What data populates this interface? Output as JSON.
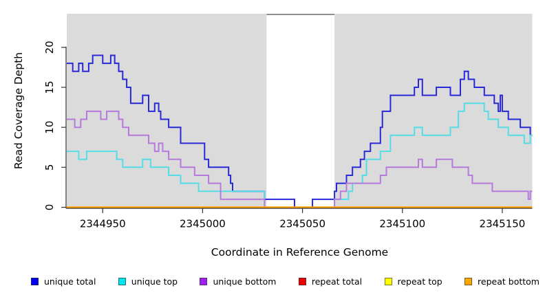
{
  "figure": {
    "xlabel": "Coordinate in Reference Genome",
    "ylabel": "Read Coverage Depth"
  },
  "chart_data": {
    "type": "line",
    "step": true,
    "title": "",
    "xlabel": "Coordinate in Reference Genome",
    "ylabel": "Read Coverage Depth",
    "xlim": [
      2344932,
      2345165
    ],
    "ylim": [
      0,
      24.2
    ],
    "xticks": [
      2344950,
      2345000,
      2345050,
      2345100,
      2345150
    ],
    "yticks": [
      0,
      5,
      10,
      15,
      20
    ],
    "grid": false,
    "legend_position": "bottom",
    "panel_background": "#dbdbdb",
    "highlight_band": {
      "x0": 2345032,
      "x1": 2345066,
      "color": "#ffffff",
      "top_border": "#8f8f8f"
    },
    "series": [
      {
        "name": "unique total",
        "color": "#2828d8",
        "points": [
          [
            2344932,
            18
          ],
          [
            2344935,
            17
          ],
          [
            2344938,
            18
          ],
          [
            2344940,
            17
          ],
          [
            2344943,
            18
          ],
          [
            2344945,
            19
          ],
          [
            2344950,
            18
          ],
          [
            2344954,
            19
          ],
          [
            2344956,
            18
          ],
          [
            2344958,
            17
          ],
          [
            2344960,
            16
          ],
          [
            2344962,
            15
          ],
          [
            2344964,
            13
          ],
          [
            2344970,
            14
          ],
          [
            2344973,
            12
          ],
          [
            2344976,
            13
          ],
          [
            2344978,
            12
          ],
          [
            2344979,
            11
          ],
          [
            2344983,
            10
          ],
          [
            2344989,
            8
          ],
          [
            2345001,
            6
          ],
          [
            2345003,
            5
          ],
          [
            2345013,
            4
          ],
          [
            2345014,
            3
          ],
          [
            2345015,
            2
          ],
          [
            2345031,
            1
          ],
          [
            2345046,
            0
          ],
          [
            2345055,
            1
          ],
          [
            2345066,
            2
          ],
          [
            2345067,
            3
          ],
          [
            2345072,
            4
          ],
          [
            2345075,
            5
          ],
          [
            2345079,
            6
          ],
          [
            2345081,
            7
          ],
          [
            2345084,
            8
          ],
          [
            2345089,
            10
          ],
          [
            2345090,
            12
          ],
          [
            2345094,
            14
          ],
          [
            2345106,
            15
          ],
          [
            2345108,
            16
          ],
          [
            2345110,
            14
          ],
          [
            2345117,
            15
          ],
          [
            2345124,
            14
          ],
          [
            2345129,
            16
          ],
          [
            2345131,
            17
          ],
          [
            2345133,
            16
          ],
          [
            2345136,
            15
          ],
          [
            2345141,
            14
          ],
          [
            2345146,
            13
          ],
          [
            2345148,
            12
          ],
          [
            2345149,
            14
          ],
          [
            2345150,
            12
          ],
          [
            2345153,
            11
          ],
          [
            2345159,
            10
          ],
          [
            2345164,
            9
          ],
          [
            2345165,
            9
          ]
        ]
      },
      {
        "name": "unique top",
        "color": "#55dde6",
        "points": [
          [
            2344932,
            7
          ],
          [
            2344938,
            6
          ],
          [
            2344942,
            7
          ],
          [
            2344957,
            6
          ],
          [
            2344960,
            5
          ],
          [
            2344970,
            6
          ],
          [
            2344974,
            5
          ],
          [
            2344983,
            4
          ],
          [
            2344989,
            3
          ],
          [
            2344998,
            2
          ],
          [
            2345031,
            0
          ],
          [
            2345066,
            1
          ],
          [
            2345073,
            2
          ],
          [
            2345075,
            3
          ],
          [
            2345080,
            4
          ],
          [
            2345082,
            6
          ],
          [
            2345089,
            7
          ],
          [
            2345094,
            9
          ],
          [
            2345106,
            10
          ],
          [
            2345110,
            9
          ],
          [
            2345124,
            10
          ],
          [
            2345128,
            12
          ],
          [
            2345131,
            13
          ],
          [
            2345141,
            12
          ],
          [
            2345143,
            11
          ],
          [
            2345148,
            10
          ],
          [
            2345153,
            9
          ],
          [
            2345161,
            8
          ],
          [
            2345164,
            9
          ],
          [
            2345165,
            9
          ]
        ]
      },
      {
        "name": "unique bottom",
        "color": "#b67adc",
        "points": [
          [
            2344932,
            11
          ],
          [
            2344936,
            10
          ],
          [
            2344939,
            11
          ],
          [
            2344942,
            12
          ],
          [
            2344949,
            11
          ],
          [
            2344952,
            12
          ],
          [
            2344958,
            11
          ],
          [
            2344960,
            10
          ],
          [
            2344963,
            9
          ],
          [
            2344973,
            8
          ],
          [
            2344976,
            7
          ],
          [
            2344978,
            8
          ],
          [
            2344980,
            7
          ],
          [
            2344983,
            6
          ],
          [
            2344989,
            5
          ],
          [
            2344996,
            4
          ],
          [
            2345003,
            3
          ],
          [
            2345009,
            1
          ],
          [
            2345031,
            0
          ],
          [
            2345066,
            1
          ],
          [
            2345069,
            2
          ],
          [
            2345072,
            3
          ],
          [
            2345089,
            4
          ],
          [
            2345092,
            5
          ],
          [
            2345108,
            6
          ],
          [
            2345110,
            5
          ],
          [
            2345117,
            6
          ],
          [
            2345125,
            5
          ],
          [
            2345133,
            4
          ],
          [
            2345135,
            3
          ],
          [
            2345145,
            2
          ],
          [
            2345163,
            1
          ],
          [
            2345164,
            2
          ],
          [
            2345165,
            2
          ]
        ]
      },
      {
        "name": "repeat total",
        "color": "#ee0000",
        "points": [
          [
            2344932,
            0
          ],
          [
            2345165,
            0
          ]
        ]
      },
      {
        "name": "repeat top",
        "color": "#f7ee00",
        "points": [
          [
            2344932,
            0
          ],
          [
            2345165,
            0
          ]
        ]
      },
      {
        "name": "repeat bottom",
        "color": "#ff9f00",
        "points": [
          [
            2344932,
            0
          ],
          [
            2345165,
            0
          ]
        ]
      }
    ]
  },
  "legend": {
    "items": [
      {
        "label": "unique total",
        "color": "#0000ee"
      },
      {
        "label": "unique top",
        "color": "#00e5ee"
      },
      {
        "label": "unique bottom",
        "color": "#a020f0"
      },
      {
        "label": "repeat total",
        "color": "#ee0000"
      },
      {
        "label": "repeat top",
        "color": "#ffff00"
      },
      {
        "label": "repeat bottom",
        "color": "#ffa500"
      }
    ]
  }
}
